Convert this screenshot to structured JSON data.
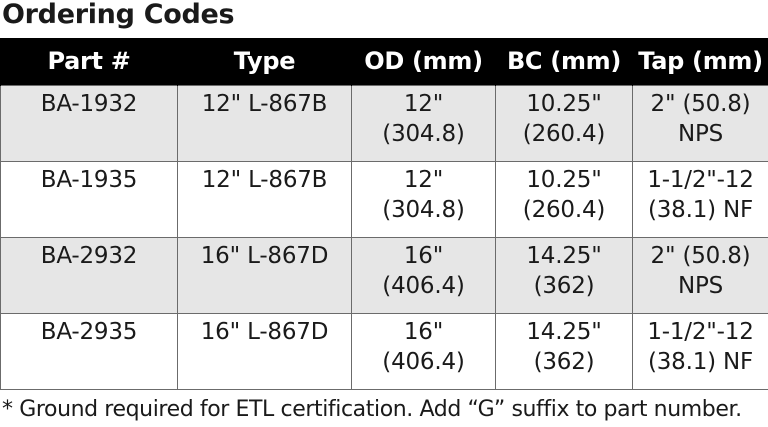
{
  "title": "Ordering Codes",
  "table": {
    "headers": [
      "Part #",
      "Type",
      "OD (mm)",
      "BC (mm)",
      "Tap (mm)"
    ],
    "rows": [
      [
        "BA-1932",
        "12\" L-867B",
        "12\"\n(304.8)",
        "10.25\"\n(260.4)",
        "2\" (50.8)\nNPS"
      ],
      [
        "BA-1935",
        "12\" L-867B",
        "12\"\n(304.8)",
        "10.25\"\n(260.4)",
        "1-1/2\"-12\n(38.1) NF"
      ],
      [
        "BA-2932",
        "16\" L-867D",
        "16\"\n(406.4)",
        "14.25\"\n(362)",
        "2\" (50.8)\nNPS"
      ],
      [
        "BA-2935",
        "16\" L-867D",
        "16\"\n(406.4)",
        "14.25\"\n(362)",
        "1-1/2\"-12\n(38.1) NF"
      ]
    ]
  },
  "footnote": "* Ground required for ETL certification. Add “G” suffix to part number.",
  "colors": {
    "header_bg": "#000000",
    "header_text": "#ffffff",
    "shaded_row": "#e6e6e6",
    "border": "#6b6b6b"
  }
}
